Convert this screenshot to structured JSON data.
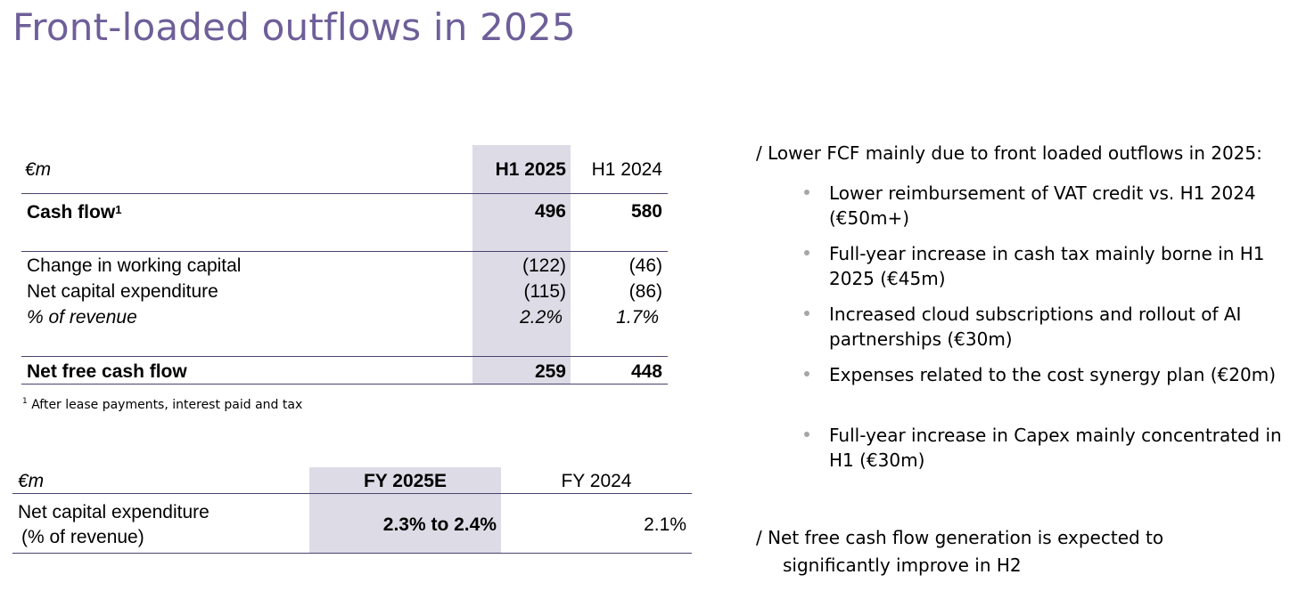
{
  "title": "Front-loaded outflows in 2025",
  "table1": {
    "unit": "€m",
    "col_h1_2025": "H1 2025",
    "col_h1_2024": "H1 2024",
    "rows": [
      {
        "label": "Cash flow",
        "sup": "1",
        "h1_2025": "496",
        "h1_2024": "580"
      },
      {
        "label": "Change in working capital",
        "h1_2025": "(122)",
        "h1_2024": "(46)"
      },
      {
        "label": "Net capital expenditure",
        "h1_2025": "(115)",
        "h1_2024": "(86)"
      },
      {
        "label": "% of revenue",
        "h1_2025": "2.2%",
        "h1_2024": "1.7%"
      },
      {
        "label": "Net free cash flow",
        "h1_2025": "259",
        "h1_2024": "448"
      }
    ],
    "footnote_mark": "1",
    "footnote": "After lease payments, interest paid and tax"
  },
  "table2": {
    "unit": "€m",
    "col_fy2025e": "FY 2025E",
    "col_fy2024": "FY 2024",
    "row_label_line1": "Net capital expenditure",
    "row_label_line2": "(% of revenue)",
    "fy2025e": "2.3% to 2.4%",
    "fy2024": "2.1%"
  },
  "right": {
    "heading1": "/ Lower FCF mainly due to front loaded outflows in 2025:",
    "bullets": [
      "Lower reimbursement of VAT credit vs. H1 2024 (€50m+)",
      "Full-year increase in cash tax mainly borne in H1 2025 (€45m)",
      "Increased cloud subscriptions and rollout of AI partnerships (€30m)",
      "Expenses related to the cost synergy plan (€20m)",
      "Full-year increase in Capex mainly concentrated in H1 (€30m)"
    ],
    "heading2_line1": "/  Net free cash flow generation is expected to",
    "heading2_line2": "significantly improve in H2"
  },
  "colors": {
    "title": "#6e5f99",
    "shade": "#dddbe6",
    "rule": "#48436e",
    "bullet": "#a6a6a6"
  }
}
